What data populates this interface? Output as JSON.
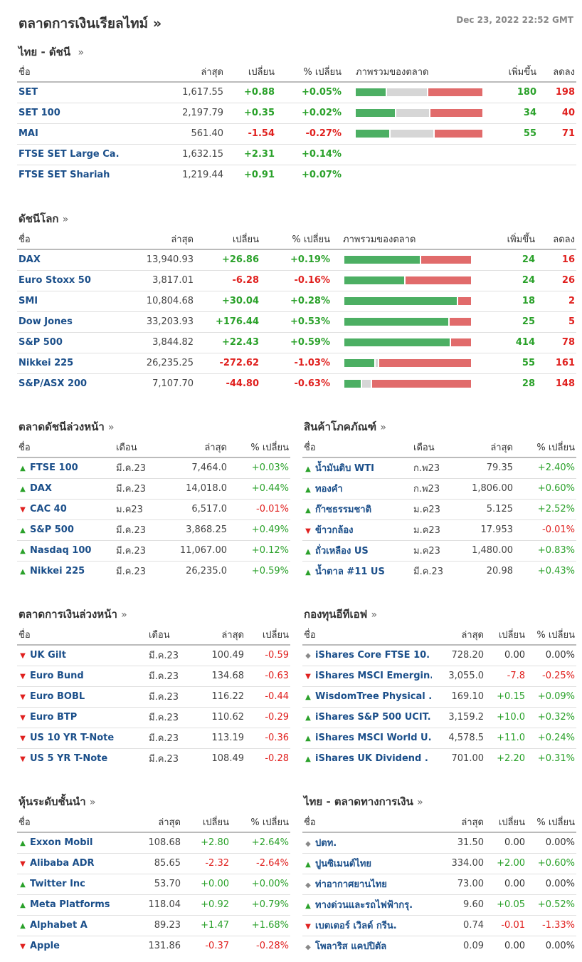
{
  "header": {
    "title": "ตลาดการเงินเรียลไทม์ »",
    "timestamp": "Dec 23, 2022 22:52 GMT"
  },
  "colors": {
    "up": "#2aa12a",
    "down": "#e0201e",
    "link": "#1b4f8a",
    "bar_up": "#4caf63",
    "bar_neutral": "#d6d6d6",
    "bar_down": "#e16b6b"
  },
  "thai_index": {
    "title": "ไทย - ดัชนี",
    "arrow": "»",
    "columns": [
      "ชื่อ",
      "ล่าสุด",
      "เปลี่ยน",
      "% เปลี่ยน",
      "ภาพรวมของตลาด",
      "เพิ่มขึ้น",
      "ลดลง"
    ],
    "rows": [
      {
        "name": "SET",
        "last": "1,617.55",
        "change": "+0.88",
        "pct": "+0.05%",
        "dir": "pos",
        "adv": "180",
        "dec": "198",
        "bar": [
          0.3,
          0.39,
          0.54
        ]
      },
      {
        "name": "SET 100",
        "last": "2,197.79",
        "change": "+0.35",
        "pct": "+0.02%",
        "dir": "pos",
        "adv": "34",
        "dec": "40",
        "bar": [
          0.33,
          0.28,
          0.44
        ]
      },
      {
        "name": "MAI",
        "last": "561.40",
        "change": "-1.54",
        "pct": "-0.27%",
        "dir": "neg",
        "adv": "55",
        "dec": "71",
        "bar": [
          0.28,
          0.36,
          0.4
        ]
      },
      {
        "name": "FTSE SET Large Ca.",
        "last": "1,632.15",
        "change": "+2.31",
        "pct": "+0.14%",
        "dir": "pos",
        "adv": "",
        "dec": "",
        "bar": null
      },
      {
        "name": "FTSE SET Shariah",
        "last": "1,219.44",
        "change": "+0.91",
        "pct": "+0.07%",
        "dir": "pos",
        "adv": "",
        "dec": "",
        "bar": null
      }
    ]
  },
  "world_index": {
    "title": "ดัชนีโลก",
    "arrow": "»",
    "columns": [
      "ชื่อ",
      "ล่าสุด",
      "เปลี่ยน",
      "% เปลี่ยน",
      "ภาพรวมของตลาด",
      "เพิ่มขึ้น",
      "ลดลง"
    ],
    "rows": [
      {
        "name": "DAX",
        "last": "13,940.93",
        "change": "+26.86",
        "pct": "+0.19%",
        "dir": "pos",
        "adv": "24",
        "dec": "16",
        "bar": [
          0.6,
          0,
          0.4
        ]
      },
      {
        "name": "Euro Stoxx 50",
        "last": "3,817.01",
        "change": "-6.28",
        "pct": "-0.16%",
        "dir": "neg",
        "adv": "24",
        "dec": "26",
        "bar": [
          0.48,
          0,
          0.52
        ]
      },
      {
        "name": "SMI",
        "last": "10,804.68",
        "change": "+30.04",
        "pct": "+0.28%",
        "dir": "pos",
        "adv": "18",
        "dec": "2",
        "bar": [
          0.9,
          0,
          0.1
        ]
      },
      {
        "name": "Dow Jones",
        "last": "33,203.93",
        "change": "+176.44",
        "pct": "+0.53%",
        "dir": "pos",
        "adv": "25",
        "dec": "5",
        "bar": [
          0.83,
          0,
          0.17
        ]
      },
      {
        "name": "S&P 500",
        "last": "3,844.82",
        "change": "+22.43",
        "pct": "+0.59%",
        "dir": "pos",
        "adv": "414",
        "dec": "78",
        "bar": [
          0.84,
          0,
          0.16
        ]
      },
      {
        "name": "Nikkei 225",
        "last": "26,235.25",
        "change": "-272.62",
        "pct": "-1.03%",
        "dir": "neg",
        "adv": "55",
        "dec": "161",
        "bar": [
          0.24,
          0.02,
          0.74
        ]
      },
      {
        "name": "S&P/ASX 200",
        "last": "7,107.70",
        "change": "-44.80",
        "pct": "-0.63%",
        "dir": "neg",
        "adv": "28",
        "dec": "148",
        "bar": [
          0.13,
          0.07,
          0.8
        ]
      }
    ]
  },
  "index_futures": {
    "title": "ตลาดดัชนีล่วงหน้า",
    "arrow": "»",
    "columns": [
      "ชื่อ",
      "เดือน",
      "ล่าสุด",
      "% เปลี่ยน"
    ],
    "rows": [
      {
        "icon": "up-arrow-icon",
        "name": "FTSE 100",
        "month": "มี.ค.23",
        "last": "7,464.0",
        "pct": "+0.03%",
        "dir": "pos"
      },
      {
        "icon": "up-arrow-icon",
        "name": "DAX",
        "month": "มี.ค.23",
        "last": "14,018.0",
        "pct": "+0.44%",
        "dir": "pos"
      },
      {
        "icon": "down-arrow-icon",
        "name": "CAC 40",
        "month": "ม.ค23",
        "last": "6,517.0",
        "pct": "-0.01%",
        "dir": "neg"
      },
      {
        "icon": "up-arrow-icon",
        "name": "S&P 500",
        "month": "มี.ค.23",
        "last": "3,868.25",
        "pct": "+0.49%",
        "dir": "pos"
      },
      {
        "icon": "up-arrow-icon",
        "name": "Nasdaq 100",
        "month": "มี.ค.23",
        "last": "11,067.00",
        "pct": "+0.12%",
        "dir": "pos"
      },
      {
        "icon": "up-arrow-icon",
        "name": "Nikkei 225",
        "month": "มี.ค.23",
        "last": "26,235.0",
        "pct": "+0.59%",
        "dir": "pos"
      }
    ]
  },
  "commodities": {
    "title": "สินค้าโภคภัณฑ์",
    "arrow": "»",
    "columns": [
      "ชื่อ",
      "เดือน",
      "ล่าสุด",
      "% เปลี่ยน"
    ],
    "rows": [
      {
        "icon": "up-arrow-icon",
        "name": "น้ำมันดิบ WTI",
        "month": "ก.พ23",
        "last": "79.35",
        "pct": "+2.40%",
        "dir": "pos"
      },
      {
        "icon": "up-arrow-icon",
        "name": "ทองคำ",
        "month": "ก.พ23",
        "last": "1,806.00",
        "pct": "+0.60%",
        "dir": "pos"
      },
      {
        "icon": "up-arrow-icon",
        "name": "ก๊าซธรรมชาติ",
        "month": "ม.ค23",
        "last": "5.125",
        "pct": "+2.52%",
        "dir": "pos"
      },
      {
        "icon": "down-arrow-icon",
        "name": "ข้าวกล้อง",
        "month": "ม.ค23",
        "last": "17.953",
        "pct": "-0.01%",
        "dir": "neg"
      },
      {
        "icon": "up-arrow-icon",
        "name": "ถั่วเหลือง US",
        "month": "ม.ค23",
        "last": "1,480.00",
        "pct": "+0.83%",
        "dir": "pos"
      },
      {
        "icon": "up-arrow-icon",
        "name": "น้ำตาล #11 US",
        "month": "มี.ค.23",
        "last": "20.98",
        "pct": "+0.43%",
        "dir": "pos"
      }
    ]
  },
  "bond_futures": {
    "title": "ตลาดการเงินล่วงหน้า",
    "arrow": "»",
    "columns": [
      "ชื่อ",
      "เดือน",
      "ล่าสุด",
      "เปลี่ยน"
    ],
    "rows": [
      {
        "icon": "down-arrow-icon",
        "name": "UK Gilt",
        "month": "มี.ค.23",
        "last": "100.49",
        "change": "-0.59",
        "dir": "neg"
      },
      {
        "icon": "down-arrow-icon",
        "name": "Euro Bund",
        "month": "มี.ค.23",
        "last": "134.68",
        "change": "-0.63",
        "dir": "neg"
      },
      {
        "icon": "down-arrow-icon",
        "name": "Euro BOBL",
        "month": "มี.ค.23",
        "last": "116.22",
        "change": "-0.44",
        "dir": "neg"
      },
      {
        "icon": "down-arrow-icon",
        "name": "Euro BTP",
        "month": "มี.ค.23",
        "last": "110.62",
        "change": "-0.29",
        "dir": "neg"
      },
      {
        "icon": "down-arrow-icon",
        "name": "US 10 YR T-Note",
        "month": "มี.ค.23",
        "last": "113.19",
        "change": "-0.36",
        "dir": "neg"
      },
      {
        "icon": "down-arrow-icon",
        "name": "US 5 YR T-Note",
        "month": "มี.ค.23",
        "last": "108.49",
        "change": "-0.28",
        "dir": "neg"
      }
    ]
  },
  "etfs": {
    "title": "กองทุนอีทีเอฟ",
    "arrow": "»",
    "columns": [
      "ชื่อ",
      "ล่าสุด",
      "เปลี่ยน",
      "% เปลี่ยน"
    ],
    "rows": [
      {
        "icon": "flat-arrow-icon",
        "name": "iShares Core FTSE 10.",
        "last": "728.20",
        "change": "0.00",
        "pct": "0.00%",
        "dir": "neu"
      },
      {
        "icon": "down-arrow-icon",
        "name": "iShares MSCI Emergin.",
        "last": "3,055.0",
        "change": "-7.8",
        "pct": "-0.25%",
        "dir": "neg"
      },
      {
        "icon": "up-arrow-icon",
        "name": "WisdomTree Physical .",
        "last": "169.10",
        "change": "+0.15",
        "pct": "+0.09%",
        "dir": "pos"
      },
      {
        "icon": "up-arrow-icon",
        "name": "iShares S&P 500 UCIT.",
        "last": "3,159.2",
        "change": "+10.0",
        "pct": "+0.32%",
        "dir": "pos"
      },
      {
        "icon": "up-arrow-icon",
        "name": "iShares MSCI World U.",
        "last": "4,578.5",
        "change": "+11.0",
        "pct": "+0.24%",
        "dir": "pos"
      },
      {
        "icon": "up-arrow-icon",
        "name": "iShares UK Dividend .",
        "last": "701.00",
        "change": "+2.20",
        "pct": "+0.31%",
        "dir": "pos"
      }
    ]
  },
  "blue_chips": {
    "title": "หุ้นระดับชั้นนำ",
    "arrow": "»",
    "columns": [
      "ชื่อ",
      "ล่าสุด",
      "เปลี่ยน",
      "% เปลี่ยน"
    ],
    "rows": [
      {
        "icon": "up-arrow-icon",
        "name": "Exxon Mobil",
        "last": "108.68",
        "change": "+2.80",
        "pct": "+2.64%",
        "dir": "pos"
      },
      {
        "icon": "down-arrow-icon",
        "name": "Alibaba ADR",
        "last": "85.65",
        "change": "-2.32",
        "pct": "-2.64%",
        "dir": "neg"
      },
      {
        "icon": "up-arrow-icon",
        "name": "Twitter Inc",
        "last": "53.70",
        "change": "+0.00",
        "pct": "+0.00%",
        "dir": "pos"
      },
      {
        "icon": "up-arrow-icon",
        "name": "Meta Platforms",
        "last": "118.04",
        "change": "+0.92",
        "pct": "+0.79%",
        "dir": "pos"
      },
      {
        "icon": "up-arrow-icon",
        "name": "Alphabet A",
        "last": "89.23",
        "change": "+1.47",
        "pct": "+1.68%",
        "dir": "pos"
      },
      {
        "icon": "down-arrow-icon",
        "name": "Apple",
        "last": "131.86",
        "change": "-0.37",
        "pct": "-0.28%",
        "dir": "neg"
      }
    ]
  },
  "thai_money": {
    "title": "ไทย - ตลาดทางการเงิน",
    "arrow": "»",
    "columns": [
      "ชื่อ",
      "ล่าสุด",
      "เปลี่ยน",
      "% เปลี่ยน"
    ],
    "rows": [
      {
        "icon": "flat-arrow-icon",
        "name": "ปตท.",
        "last": "31.50",
        "change": "0.00",
        "pct": "0.00%",
        "dir": "neu"
      },
      {
        "icon": "up-arrow-icon",
        "name": "ปูนซิเมนต์ไทย",
        "last": "334.00",
        "change": "+2.00",
        "pct": "+0.60%",
        "dir": "pos"
      },
      {
        "icon": "flat-arrow-icon",
        "name": "ท่าอากาศยานไทย",
        "last": "73.00",
        "change": "0.00",
        "pct": "0.00%",
        "dir": "neu"
      },
      {
        "icon": "up-arrow-icon",
        "name": "ทางด่วนและรถไฟฟ้ากรุ.",
        "last": "9.60",
        "change": "+0.05",
        "pct": "+0.52%",
        "dir": "pos"
      },
      {
        "icon": "down-arrow-icon",
        "name": "เบตเตอร์ เวิลด์ กรีน.",
        "last": "0.74",
        "change": "-0.01",
        "pct": "-1.33%",
        "dir": "neg"
      },
      {
        "icon": "flat-arrow-icon",
        "name": "โพลาริส แคปปิตัล",
        "last": "0.09",
        "change": "0.00",
        "pct": "0.00%",
        "dir": "neu"
      }
    ]
  }
}
